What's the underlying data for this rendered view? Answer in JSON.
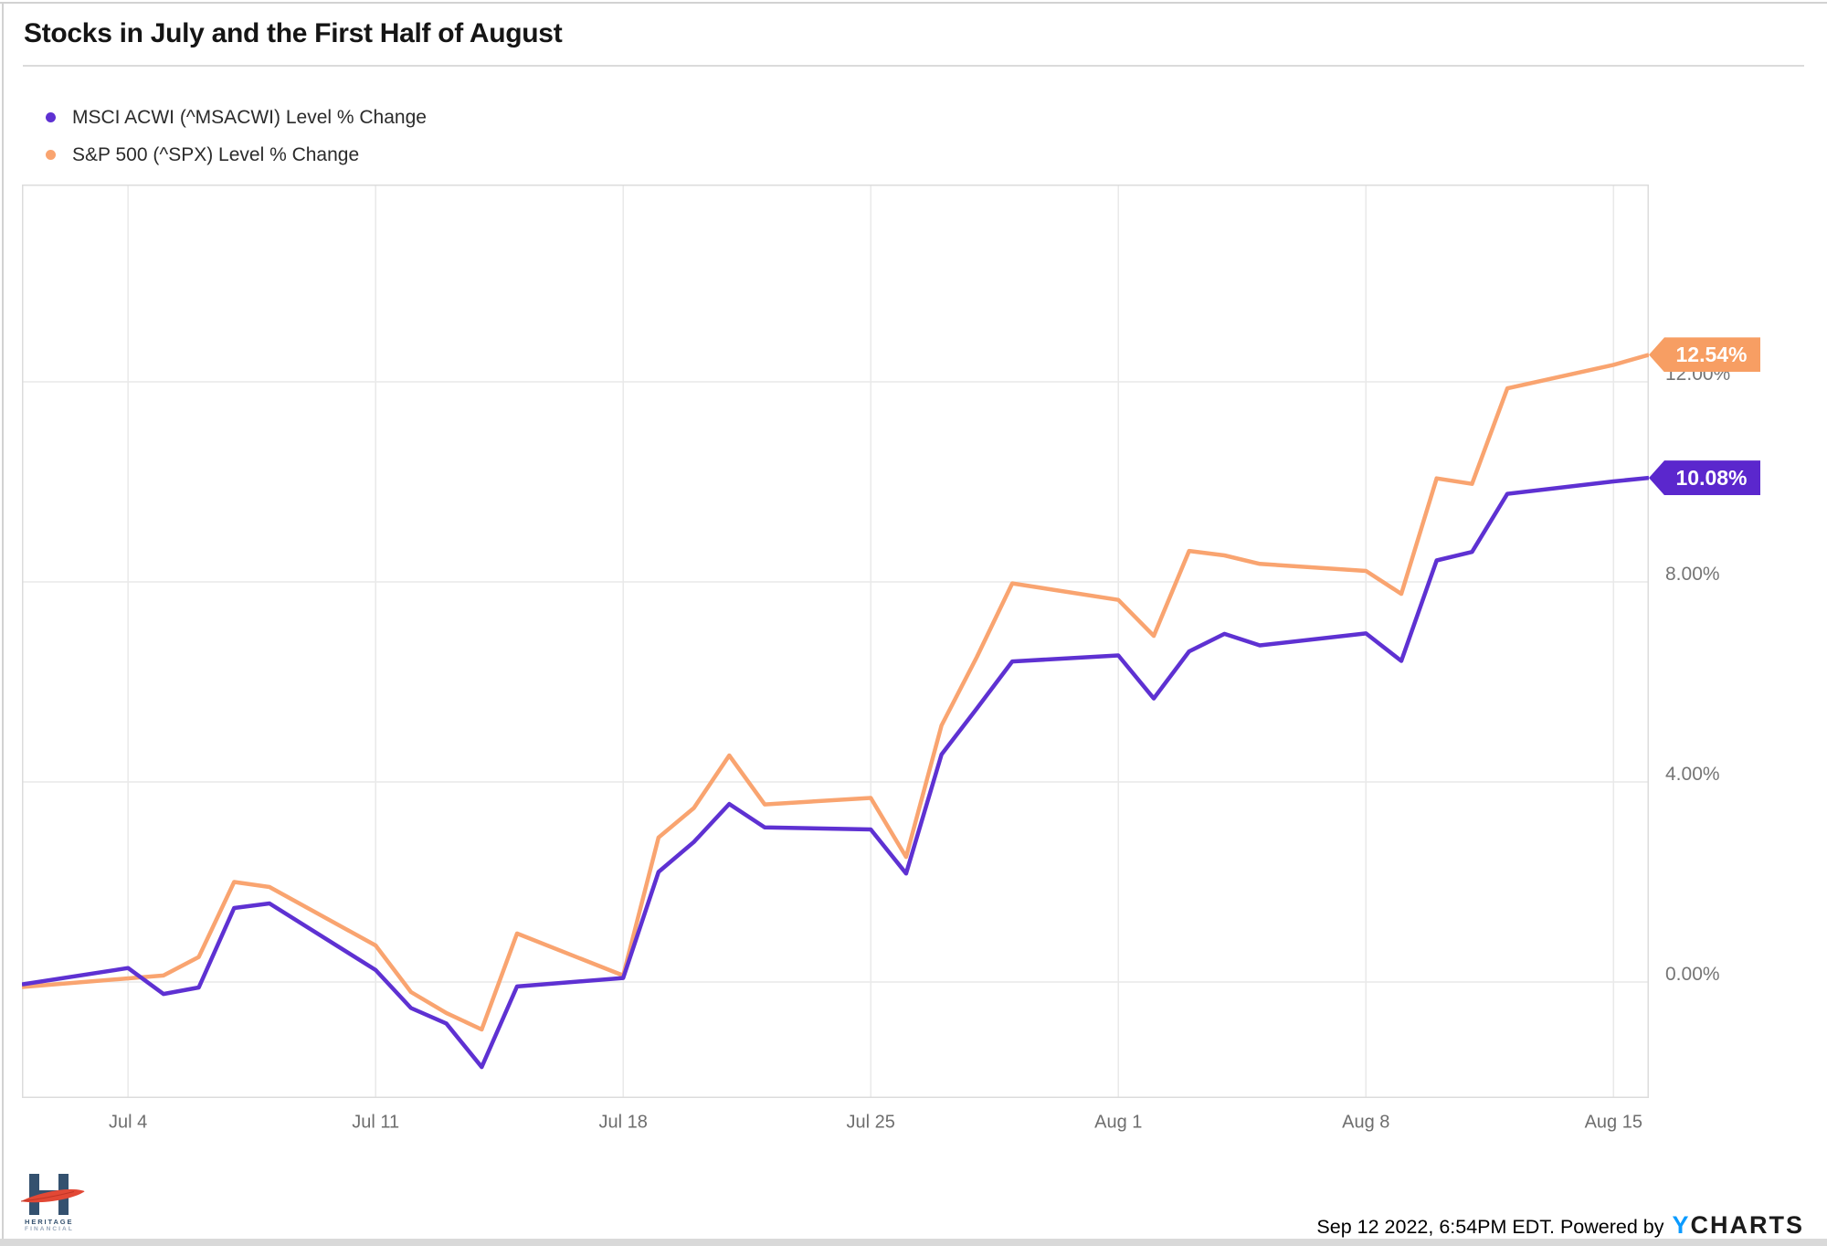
{
  "title": "Stocks in July and the First Half of August",
  "footer": {
    "timestamp": "Sep 12 2022, 6:54PM EDT. Powered by",
    "brand_y": "Y",
    "brand_rest": "CHARTS"
  },
  "watermark": {
    "line1": "HERITAGE",
    "line2": "FINANCIAL"
  },
  "colors": {
    "grid": "#e9e9e9",
    "plot_border": "#dcdcdc",
    "tick_text": "#757575"
  },
  "chart_data": {
    "type": "line",
    "title": "Stocks in July and the First Half of August",
    "xlabel": "",
    "ylabel": "Level % Change",
    "grid": true,
    "legend_position": "top-left",
    "x_axis": {
      "start_date": "Jul 1",
      "end_date": "Aug 16",
      "span_days": 46,
      "ticks": [
        {
          "label": "Jul 4",
          "day": 3
        },
        {
          "label": "Jul 11",
          "day": 10
        },
        {
          "label": "Jul 18",
          "day": 17
        },
        {
          "label": "Jul 25",
          "day": 24
        },
        {
          "label": "Aug 1",
          "day": 31
        },
        {
          "label": "Aug 8",
          "day": 38
        },
        {
          "label": "Aug 15",
          "day": 45
        }
      ]
    },
    "y_axis": {
      "unit": "%",
      "ylim": [
        -2.32,
        15.95
      ],
      "ticks": [
        {
          "label": "0.00%",
          "value": 0
        },
        {
          "label": "4.00%",
          "value": 4
        },
        {
          "label": "8.00%",
          "value": 8
        },
        {
          "label": "12.00%",
          "value": 12
        }
      ]
    },
    "series": [
      {
        "name": "MSCI ACWI (^MSACWI) Level % Change",
        "color": "#5e31d2",
        "badge_color": "#5b27cd",
        "end_label": "10.08%",
        "points": [
          {
            "date": "Jul 1",
            "day": 0,
            "value": -0.05
          },
          {
            "date": "Jul 4",
            "day": 3,
            "value": 0.28
          },
          {
            "date": "Jul 5",
            "day": 4,
            "value": -0.24
          },
          {
            "date": "Jul 6",
            "day": 5,
            "value": -0.11
          },
          {
            "date": "Jul 7",
            "day": 6,
            "value": 1.48
          },
          {
            "date": "Jul 8",
            "day": 7,
            "value": 1.57
          },
          {
            "date": "Jul 11",
            "day": 10,
            "value": 0.24
          },
          {
            "date": "Jul 12",
            "day": 11,
            "value": -0.52
          },
          {
            "date": "Jul 13",
            "day": 12,
            "value": -0.83
          },
          {
            "date": "Jul 14",
            "day": 13,
            "value": -1.7
          },
          {
            "date": "Jul 15",
            "day": 14,
            "value": -0.09
          },
          {
            "date": "Jul 18",
            "day": 17,
            "value": 0.08
          },
          {
            "date": "Jul 19",
            "day": 18,
            "value": 2.2
          },
          {
            "date": "Jul 20",
            "day": 19,
            "value": 2.8
          },
          {
            "date": "Jul 21",
            "day": 20,
            "value": 3.56
          },
          {
            "date": "Jul 22",
            "day": 21,
            "value": 3.09
          },
          {
            "date": "Jul 25",
            "day": 24,
            "value": 3.05
          },
          {
            "date": "Jul 26",
            "day": 25,
            "value": 2.17
          },
          {
            "date": "Jul 27",
            "day": 26,
            "value": 4.55
          },
          {
            "date": "Jul 28",
            "day": 27,
            "value": 5.47
          },
          {
            "date": "Jul 29",
            "day": 28,
            "value": 6.41
          },
          {
            "date": "Aug 1",
            "day": 31,
            "value": 6.53
          },
          {
            "date": "Aug 2",
            "day": 32,
            "value": 5.67
          },
          {
            "date": "Aug 3",
            "day": 33,
            "value": 6.61
          },
          {
            "date": "Aug 4",
            "day": 34,
            "value": 6.96
          },
          {
            "date": "Aug 5",
            "day": 35,
            "value": 6.73
          },
          {
            "date": "Aug 8",
            "day": 38,
            "value": 6.97
          },
          {
            "date": "Aug 9",
            "day": 39,
            "value": 6.42
          },
          {
            "date": "Aug 10",
            "day": 40,
            "value": 8.43
          },
          {
            "date": "Aug 11",
            "day": 41,
            "value": 8.6
          },
          {
            "date": "Aug 12",
            "day": 42,
            "value": 9.76
          },
          {
            "date": "Aug 15",
            "day": 45,
            "value": 10.01
          },
          {
            "date": "Aug 16",
            "day": 46,
            "value": 10.08
          }
        ]
      },
      {
        "name": "S&P 500 (^SPX) Level % Change",
        "color": "#f9a470",
        "badge_color": "#f79e63",
        "end_label": "12.54%",
        "points": [
          {
            "date": "Jul 1",
            "day": 0,
            "value": -0.1
          },
          {
            "date": "Jul 5",
            "day": 4,
            "value": 0.13
          },
          {
            "date": "Jul 6",
            "day": 5,
            "value": 0.5
          },
          {
            "date": "Jul 7",
            "day": 6,
            "value": 2.0
          },
          {
            "date": "Jul 8",
            "day": 7,
            "value": 1.9
          },
          {
            "date": "Jul 11",
            "day": 10,
            "value": 0.73
          },
          {
            "date": "Jul 12",
            "day": 11,
            "value": -0.2
          },
          {
            "date": "Jul 13",
            "day": 12,
            "value": -0.62
          },
          {
            "date": "Jul 14",
            "day": 13,
            "value": -0.95
          },
          {
            "date": "Jul 15",
            "day": 14,
            "value": 0.97
          },
          {
            "date": "Jul 18",
            "day": 17,
            "value": 0.13
          },
          {
            "date": "Jul 19",
            "day": 18,
            "value": 2.89
          },
          {
            "date": "Jul 20",
            "day": 19,
            "value": 3.48
          },
          {
            "date": "Jul 21",
            "day": 20,
            "value": 4.53
          },
          {
            "date": "Jul 22",
            "day": 21,
            "value": 3.55
          },
          {
            "date": "Jul 25",
            "day": 24,
            "value": 3.68
          },
          {
            "date": "Jul 26",
            "day": 25,
            "value": 2.5
          },
          {
            "date": "Jul 27",
            "day": 26,
            "value": 5.13
          },
          {
            "date": "Jul 28",
            "day": 27,
            "value": 6.5
          },
          {
            "date": "Jul 29",
            "day": 28,
            "value": 7.97
          },
          {
            "date": "Aug 1",
            "day": 31,
            "value": 7.64
          },
          {
            "date": "Aug 2",
            "day": 32,
            "value": 6.92
          },
          {
            "date": "Aug 3",
            "day": 33,
            "value": 8.62
          },
          {
            "date": "Aug 4",
            "day": 34,
            "value": 8.53
          },
          {
            "date": "Aug 5",
            "day": 35,
            "value": 8.36
          },
          {
            "date": "Aug 8",
            "day": 38,
            "value": 8.22
          },
          {
            "date": "Aug 9",
            "day": 39,
            "value": 7.76
          },
          {
            "date": "Aug 10",
            "day": 40,
            "value": 10.07
          },
          {
            "date": "Aug 11",
            "day": 41,
            "value": 9.96
          },
          {
            "date": "Aug 12",
            "day": 42,
            "value": 11.87
          },
          {
            "date": "Aug 15",
            "day": 45,
            "value": 12.34
          },
          {
            "date": "Aug 16",
            "day": 46,
            "value": 12.54
          }
        ]
      }
    ]
  }
}
